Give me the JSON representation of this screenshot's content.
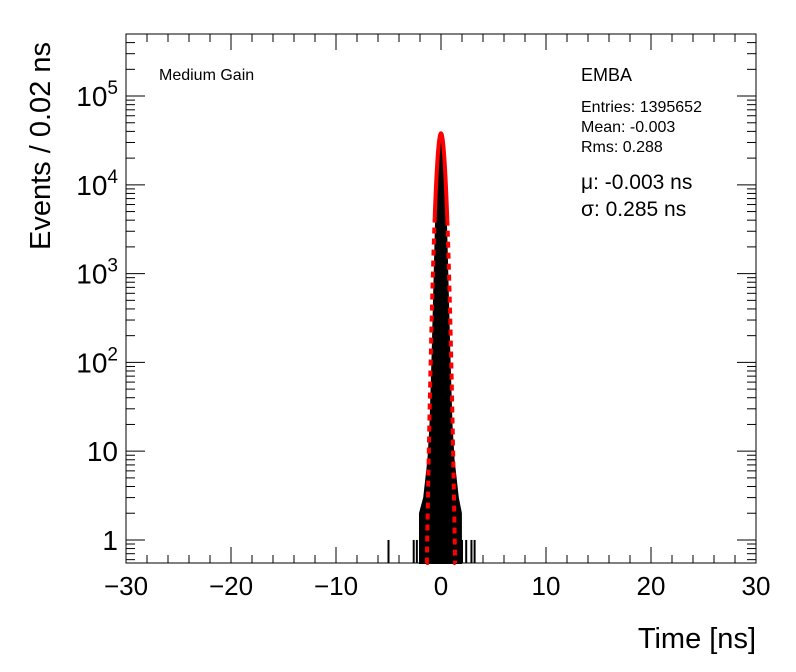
{
  "chart_data": {
    "type": "histogram",
    "title": "",
    "xlabel": "Time [ns]",
    "ylabel": "Events / 0.02 ns",
    "xlim": [
      -30,
      30
    ],
    "ylim": [
      0.55,
      500000
    ],
    "yscale": "log",
    "xticks": [
      -30,
      -20,
      -10,
      0,
      10,
      20,
      30
    ],
    "xtick_labels": [
      "−30",
      "−20",
      "−10",
      "0",
      "10",
      "20",
      "30"
    ],
    "yticks": [
      {
        "value": 1,
        "base": "1",
        "exp": ""
      },
      {
        "value": 10,
        "base": "10",
        "exp": ""
      },
      {
        "value": 100,
        "base": "10",
        "exp": "2"
      },
      {
        "value": 1000,
        "base": "10",
        "exp": "3"
      },
      {
        "value": 10000,
        "base": "10",
        "exp": "4"
      },
      {
        "value": 100000,
        "base": "10",
        "exp": "5"
      }
    ],
    "annotations": {
      "gain": "Medium Gain",
      "partition": "EMBA",
      "entries": "Entries: 1395652",
      "mean": "Mean: -0.003",
      "rms": "Rms: 0.288",
      "mu": "μ: -0.003 ns",
      "sigma": "σ: 0.285 ns"
    },
    "histogram_spikes": [
      {
        "x": -5.0,
        "y": 1
      },
      {
        "x": -2.6,
        "y": 1
      },
      {
        "x": -2.3,
        "y": 1
      },
      {
        "x": 2.0,
        "y": 1
      },
      {
        "x": 2.4,
        "y": 1
      },
      {
        "x": 2.9,
        "y": 1
      },
      {
        "x": 3.2,
        "y": 1
      }
    ],
    "histogram_envelope": [
      {
        "x": -2.0,
        "y": 2
      },
      {
        "x": -1.6,
        "y": 3
      },
      {
        "x": -1.2,
        "y": 8
      },
      {
        "x": -1.0,
        "y": 20
      },
      {
        "x": -0.8,
        "y": 120
      },
      {
        "x": -0.6,
        "y": 1000
      },
      {
        "x": -0.4,
        "y": 8000
      },
      {
        "x": -0.2,
        "y": 28000
      },
      {
        "x": 0.0,
        "y": 37000
      },
      {
        "x": 0.2,
        "y": 28000
      },
      {
        "x": 0.4,
        "y": 8000
      },
      {
        "x": 0.6,
        "y": 1000
      },
      {
        "x": 0.8,
        "y": 120
      },
      {
        "x": 1.0,
        "y": 20
      },
      {
        "x": 1.2,
        "y": 8
      },
      {
        "x": 1.6,
        "y": 3
      },
      {
        "x": 1.9,
        "y": 2
      }
    ],
    "fit": {
      "type": "gaussian",
      "amplitude": 38000,
      "mean": -0.003,
      "sigma": 0.285,
      "color": "#ff0000",
      "solid_range": [
        -0.6,
        0.6
      ],
      "dashed_range": [
        -1.4,
        1.4
      ]
    },
    "histogram_color": "#000000",
    "grid": false,
    "legend": "none"
  }
}
